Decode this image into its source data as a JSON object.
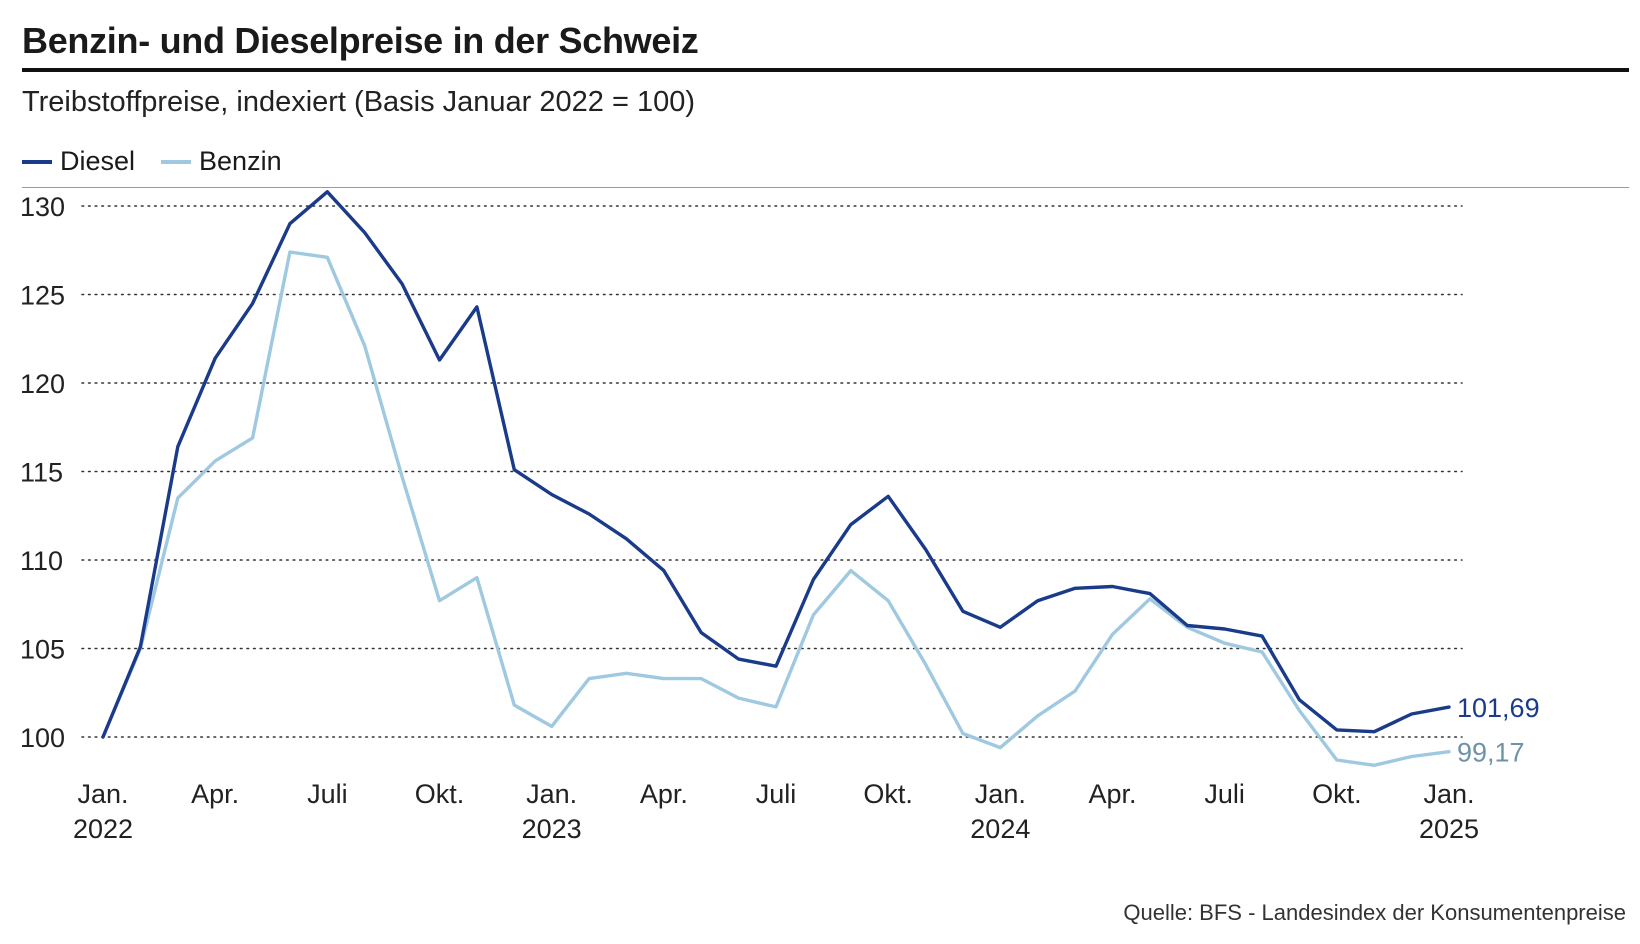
{
  "header": {
    "title": "Benzin- und Dieselpreise in der Schweiz",
    "subtitle": "Treibstoffpreise, indexiert (Basis Januar 2022 = 100)"
  },
  "footer": {
    "source": "Quelle: BFS - Landesindex der Konsumentenpreise"
  },
  "colors": {
    "diesel": "#1a3a8a",
    "benzin": "#9fc9e0",
    "benzin_label": "#6e93a8",
    "grid": "#333333"
  },
  "chart_data": {
    "type": "line",
    "title": "Benzin- und Dieselpreise in der Schweiz",
    "subtitle": "Treibstoffpreise, indexiert (Basis Januar 2022 = 100)",
    "xlabel": "",
    "ylabel": "",
    "ylim": [
      98,
      131
    ],
    "yticks": [
      100,
      105,
      110,
      115,
      120,
      125,
      130
    ],
    "grid": true,
    "legend_position": "top-left",
    "x": [
      "2022-01",
      "2022-02",
      "2022-03",
      "2022-04",
      "2022-05",
      "2022-06",
      "2022-07",
      "2022-08",
      "2022-09",
      "2022-10",
      "2022-11",
      "2022-12",
      "2023-01",
      "2023-02",
      "2023-03",
      "2023-04",
      "2023-05",
      "2023-06",
      "2023-07",
      "2023-08",
      "2023-09",
      "2023-10",
      "2023-11",
      "2023-12",
      "2024-01",
      "2024-02",
      "2024-03",
      "2024-04",
      "2024-05",
      "2024-06",
      "2024-07",
      "2024-08",
      "2024-09",
      "2024-10",
      "2024-11",
      "2024-12",
      "2025-01"
    ],
    "xticks": [
      {
        "index": 0,
        "month": "Jan.",
        "year": "2022"
      },
      {
        "index": 3,
        "month": "Apr.",
        "year": ""
      },
      {
        "index": 6,
        "month": "Juli",
        "year": ""
      },
      {
        "index": 9,
        "month": "Okt.",
        "year": ""
      },
      {
        "index": 12,
        "month": "Jan.",
        "year": "2023"
      },
      {
        "index": 15,
        "month": "Apr.",
        "year": ""
      },
      {
        "index": 18,
        "month": "Juli",
        "year": ""
      },
      {
        "index": 21,
        "month": "Okt.",
        "year": ""
      },
      {
        "index": 24,
        "month": "Jan.",
        "year": "2024"
      },
      {
        "index": 27,
        "month": "Apr.",
        "year": ""
      },
      {
        "index": 30,
        "month": "Juli",
        "year": ""
      },
      {
        "index": 33,
        "month": "Okt.",
        "year": ""
      },
      {
        "index": 36,
        "month": "Jan.",
        "year": "2025"
      }
    ],
    "series": [
      {
        "name": "Diesel",
        "color": "#1a3a8a",
        "end_label": "101,69",
        "values": [
          100,
          105.1,
          116.4,
          121.4,
          124.5,
          129.0,
          130.8,
          128.5,
          125.6,
          121.3,
          124.3,
          115.1,
          113.7,
          112.6,
          111.2,
          109.4,
          105.9,
          104.4,
          104.0,
          108.9,
          112.0,
          113.6,
          110.6,
          107.1,
          106.2,
          107.7,
          108.4,
          108.5,
          108.1,
          106.3,
          106.1,
          105.7,
          102.1,
          100.4,
          100.3,
          101.3,
          101.69
        ]
      },
      {
        "name": "Benzin",
        "color": "#9fc9e0",
        "end_label": "99,17",
        "values": [
          100,
          105.0,
          113.5,
          115.6,
          116.9,
          127.4,
          127.1,
          122.1,
          114.7,
          107.7,
          109.0,
          101.8,
          100.6,
          103.3,
          103.6,
          103.3,
          103.3,
          102.2,
          101.7,
          106.9,
          109.4,
          107.7,
          104.1,
          100.2,
          99.4,
          101.2,
          102.6,
          105.8,
          107.8,
          106.2,
          105.3,
          104.8,
          101.5,
          98.7,
          98.4,
          98.9,
          99.17
        ]
      }
    ]
  }
}
